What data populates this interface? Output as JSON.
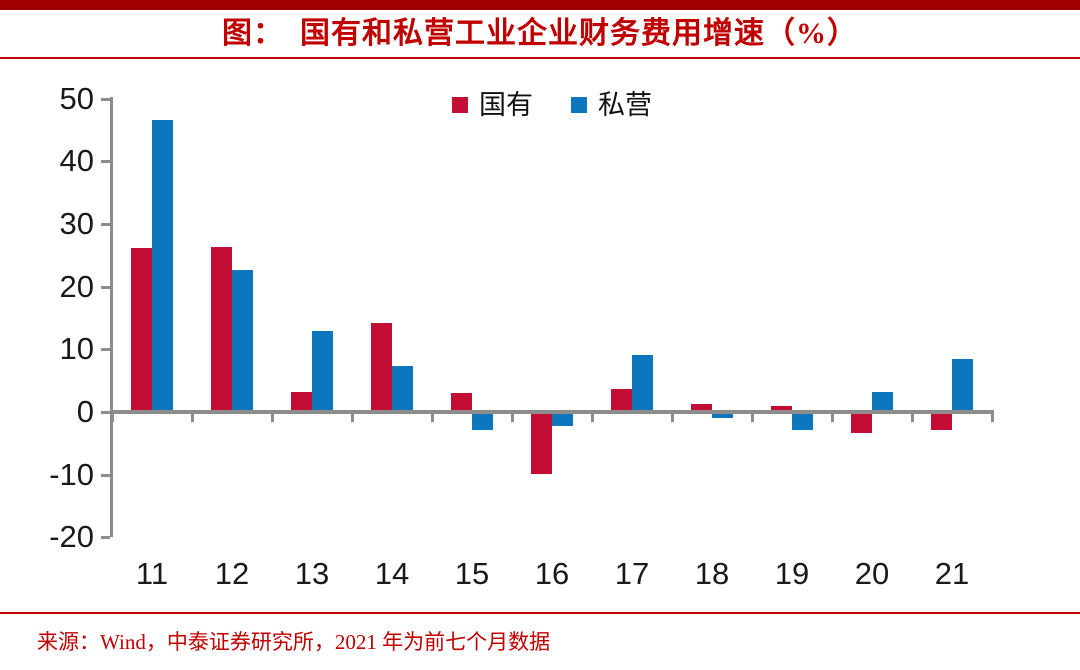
{
  "header": {
    "title": "图：　国有和私营工业企业财务费用增速（%）"
  },
  "colors": {
    "top_bar_red": "#A00000",
    "title_red": "#C00000",
    "rule_red": "#C00000",
    "axis_gray": "#8C8C8C",
    "label_black": "#1a1a1a",
    "state_owned_red": "#C30D35",
    "private_blue": "#0D76BC"
  },
  "chart_data": {
    "type": "bar",
    "title": "国有和私营工业企业财务费用增速（%）",
    "categories": [
      "11",
      "12",
      "13",
      "14",
      "15",
      "16",
      "17",
      "18",
      "19",
      "20",
      "21"
    ],
    "series": [
      {
        "key": "state-owned",
        "name": "国有",
        "color": "#C30D35",
        "values": [
          26.2,
          26.3,
          3.2,
          14.2,
          3.1,
          -9.9,
          3.6,
          1.3,
          1.0,
          -3.3,
          -2.8
        ]
      },
      {
        "key": "private",
        "name": "私营",
        "color": "#0D76BC",
        "values": [
          46.5,
          22.7,
          12.9,
          7.3,
          -2.9,
          -2.2,
          9.1,
          -1.0,
          -2.8,
          3.2,
          8.4
        ]
      }
    ],
    "xlabel": "",
    "ylabel": "",
    "ylim": [
      -20,
      50
    ],
    "yticks": [
      50,
      40,
      30,
      20,
      10,
      0,
      -10,
      -20
    ],
    "grid": false,
    "legend_position": "top-center"
  },
  "footer": {
    "source": "来源：Wind，中泰证券研究所，2021 年为前七个月数据"
  }
}
